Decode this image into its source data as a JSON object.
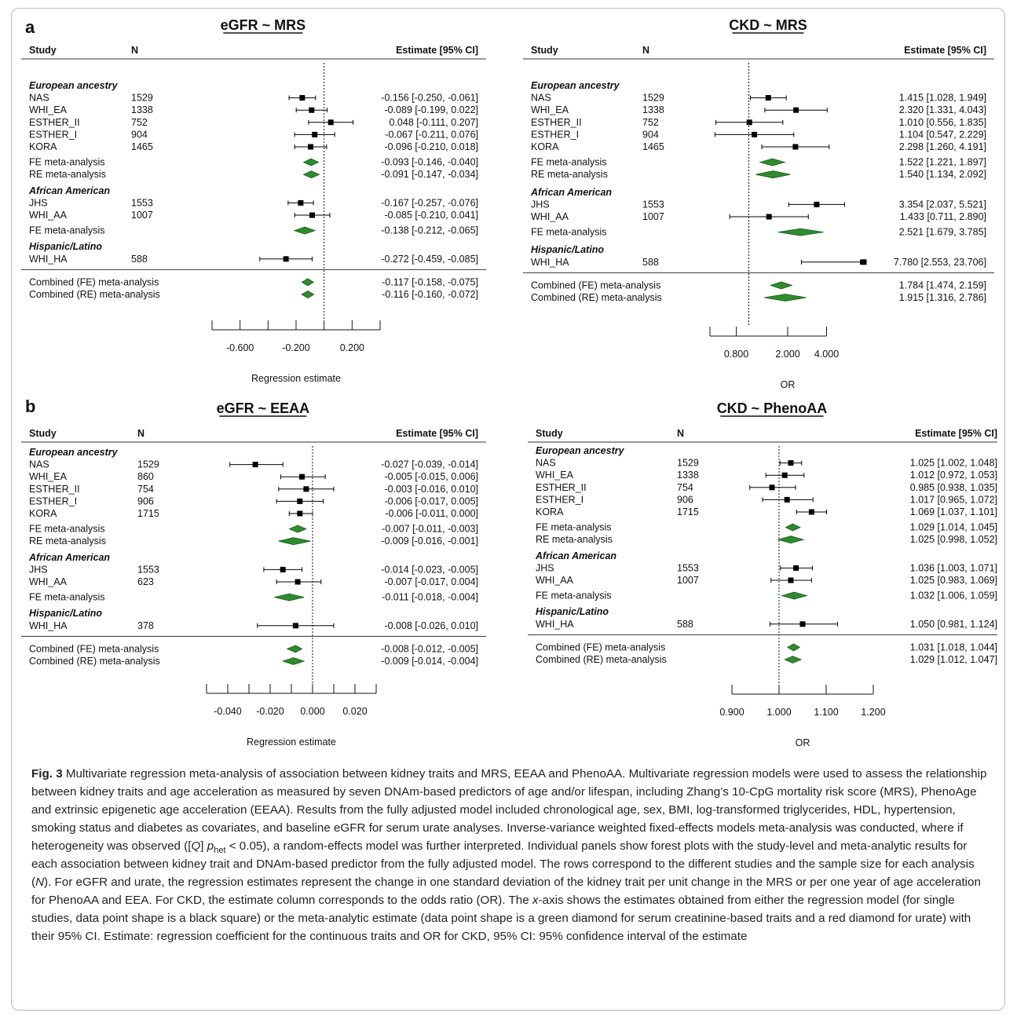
{
  "panel_letters": {
    "a": "a",
    "b": "b"
  },
  "figure_caption": {
    "label": "Fig. 3",
    "text_1": " Multivariate regression meta-analysis of association between kidney traits and MRS, EEAA and PhenoAA. Multivariate regression models were used to assess the relationship between kidney traits and age acceleration as measured by seven DNAm-based predictors of age and/or lifespan, including Zhang’s 10-CpG mortality risk score (MRS), PhenoAge and extrinsic epigenetic age acceleration (EEAA). Results from the fully adjusted model included chronological age, sex, BMI, log-transformed triglycerides, HDL, hypertension, smoking status and diabetes as covariates, and baseline eGFR for serum urate analyses. Inverse-variance weighted fixed-effects models meta-analysis was conducted, where if heterogeneity was observed ([",
    "q": "Q",
    "text_2": "] ",
    "p": "p",
    "p_sub": "het",
    "text_3": " < 0.05), a random-effects model was further interpreted. Individual panels show forest plots with the study-level and meta-analytic results for each association between kidney trait and DNAm-based predictor from the fully adjusted model. The rows correspond to the different studies and the sample size for each analysis (",
    "n": "N",
    "text_4": "). For eGFR and urate, the regression estimates represent the change in one standard deviation of the kidney trait per unit change in the MRS or per one year of age acceleration for PhenoAA and EEA. For CKD, the estimate column corresponds to the odds ratio (OR). The ",
    "x": "x",
    "text_5": "-axis shows the estimates obtained from either the regression model (for single studies, data point shape is a black square) or the meta-analytic estimate (data point shape is a green diamond for serum creatinine-based traits and a red diamond for urate) with their 95% CI. Estimate: regression coefficient for the continuous traits and OR for CKD, 95% CI: 95% confidence interval of the estimate"
  },
  "colors": {
    "diamond_fill": "#2e8b2e",
    "diamond_stroke": "#1a5c1a",
    "square": "#000000"
  },
  "chart_data": [
    {
      "type": "forest",
      "title": "eGFR ~ MRS",
      "headers": {
        "study": "Study",
        "n": "N",
        "estimate": "Estimate [95% CI]"
      },
      "xlabel": "Regression estimate",
      "xscale": "linear",
      "xlim": [
        -0.8,
        0.4
      ],
      "ticks": [
        -0.8,
        -0.6,
        -0.4,
        -0.2,
        0.0,
        0.2,
        0.4
      ],
      "tick_labels": [
        "-0.600",
        "-0.200",
        "0.200"
      ],
      "labeled_tick_values": [
        -0.6,
        -0.2,
        0.2
      ],
      "ref_line": 0,
      "rows": [
        {
          "kind": "group",
          "label": "European ancestry"
        },
        {
          "kind": "study",
          "label": "NAS",
          "n": "1529",
          "est": -0.156,
          "lo": -0.25,
          "hi": -0.061,
          "text": "-0.156 [-0.250, -0.061]"
        },
        {
          "kind": "study",
          "label": "WHI_EA",
          "n": "1338",
          "est": -0.089,
          "lo": -0.199,
          "hi": 0.022,
          "text": "-0.089 [-0.199,  0.022]"
        },
        {
          "kind": "study",
          "label": "ESTHER_II",
          "n": "752",
          "est": 0.048,
          "lo": -0.111,
          "hi": 0.207,
          "text": "0.048 [-0.111,  0.207]"
        },
        {
          "kind": "study",
          "label": "ESTHER_I",
          "n": "904",
          "est": -0.067,
          "lo": -0.211,
          "hi": 0.076,
          "text": "-0.067 [-0.211,  0.076]"
        },
        {
          "kind": "study",
          "label": "KORA",
          "n": "1465",
          "est": -0.096,
          "lo": -0.21,
          "hi": 0.018,
          "text": "-0.096 [-0.210,  0.018]"
        },
        {
          "kind": "meta",
          "label": "FE meta-analysis",
          "est": -0.093,
          "lo": -0.146,
          "hi": -0.04,
          "text": "-0.093 [-0.146, -0.040]"
        },
        {
          "kind": "meta",
          "label": "RE meta-analysis",
          "est": -0.091,
          "lo": -0.147,
          "hi": -0.034,
          "text": "-0.091 [-0.147, -0.034]"
        },
        {
          "kind": "group",
          "label": "African American"
        },
        {
          "kind": "study",
          "label": "JHS",
          "n": "1553",
          "est": -0.167,
          "lo": -0.257,
          "hi": -0.076,
          "text": "-0.167 [-0.257, -0.076]"
        },
        {
          "kind": "study",
          "label": "WHI_AA",
          "n": "1007",
          "est": -0.085,
          "lo": -0.21,
          "hi": 0.041,
          "text": "-0.085 [-0.210,  0.041]"
        },
        {
          "kind": "meta",
          "label": "FE meta-analysis",
          "est": -0.138,
          "lo": -0.212,
          "hi": -0.065,
          "text": "-0.138 [-0.212, -0.065]"
        },
        {
          "kind": "group",
          "label": "Hispanic/Latino"
        },
        {
          "kind": "study",
          "label": "WHI_HA",
          "n": "588",
          "est": -0.272,
          "lo": -0.459,
          "hi": -0.085,
          "text": "-0.272 [-0.459, -0.085]"
        },
        {
          "kind": "divider"
        },
        {
          "kind": "meta",
          "label": "Combined (FE) meta-analysis",
          "est": -0.117,
          "lo": -0.158,
          "hi": -0.075,
          "text": "-0.117 [-0.158, -0.075]"
        },
        {
          "kind": "meta",
          "label": "Combined (RE) meta-analysis",
          "est": -0.116,
          "lo": -0.16,
          "hi": -0.072,
          "text": "-0.116 [-0.160, -0.072]"
        }
      ]
    },
    {
      "type": "forest",
      "title": "CKD ~ MRS",
      "headers": {
        "study": "Study",
        "n": "N",
        "estimate": "Estimate [95% CI]"
      },
      "xlabel": "OR",
      "xscale": "log",
      "xlim": [
        0.5,
        8
      ],
      "ticks": [
        0.5,
        0.8,
        2.0,
        4.0
      ],
      "tick_labels": [
        "0.800",
        "2.000",
        "4.000"
      ],
      "labeled_tick_values": [
        0.8,
        2.0,
        4.0
      ],
      "ref_line": 1,
      "rows": [
        {
          "kind": "group",
          "label": "European ancestry"
        },
        {
          "kind": "study",
          "label": "NAS",
          "n": "1529",
          "est": 1.415,
          "lo": 1.028,
          "hi": 1.949,
          "text": "1.415 [1.028,  1.949]"
        },
        {
          "kind": "study",
          "label": "WHI_EA",
          "n": "1338",
          "est": 2.32,
          "lo": 1.331,
          "hi": 4.043,
          "text": "2.320 [1.331,  4.043]"
        },
        {
          "kind": "study",
          "label": "ESTHER_II",
          "n": "752",
          "est": 1.01,
          "lo": 0.556,
          "hi": 1.835,
          "text": "1.010 [0.556,  1.835]"
        },
        {
          "kind": "study",
          "label": "ESTHER_I",
          "n": "904",
          "est": 1.104,
          "lo": 0.547,
          "hi": 2.229,
          "text": "1.104 [0.547,  2.229]"
        },
        {
          "kind": "study",
          "label": "KORA",
          "n": "1465",
          "est": 2.298,
          "lo": 1.26,
          "hi": 4.191,
          "text": "2.298 [1.260,  4.191]"
        },
        {
          "kind": "meta",
          "label": "FE meta-analysis",
          "est": 1.522,
          "lo": 1.221,
          "hi": 1.897,
          "text": "1.522 [1.221,  1.897]"
        },
        {
          "kind": "meta",
          "label": "RE meta-analysis",
          "est": 1.54,
          "lo": 1.134,
          "hi": 2.092,
          "text": "1.540 [1.134,  2.092]"
        },
        {
          "kind": "group",
          "label": "African American"
        },
        {
          "kind": "study",
          "label": "JHS",
          "n": "1553",
          "est": 3.354,
          "lo": 2.037,
          "hi": 5.521,
          "text": "3.354 [2.037,  5.521]"
        },
        {
          "kind": "study",
          "label": "WHI_AA",
          "n": "1007",
          "est": 1.433,
          "lo": 0.711,
          "hi": 2.89,
          "text": "1.433 [0.711,  2.890]"
        },
        {
          "kind": "meta",
          "label": "FE meta-analysis",
          "est": 2.521,
          "lo": 1.679,
          "hi": 3.785,
          "text": "2.521 [1.679,  3.785]"
        },
        {
          "kind": "group",
          "label": "Hispanic/Latino"
        },
        {
          "kind": "study",
          "label": "WHI_HA",
          "n": "588",
          "est": 7.78,
          "lo": 2.553,
          "hi": 23.706,
          "text": "7.780 [2.553, 23.706]"
        },
        {
          "kind": "divider"
        },
        {
          "kind": "meta",
          "label": "Combined (FE) meta-analysis",
          "est": 1.784,
          "lo": 1.474,
          "hi": 2.159,
          "text": "1.784 [1.474,  2.159]"
        },
        {
          "kind": "meta",
          "label": "Combined (RE) meta-analysis",
          "est": 1.915,
          "lo": 1.316,
          "hi": 2.786,
          "text": "1.915 [1.316,  2.786]"
        }
      ]
    },
    {
      "type": "forest",
      "title": "eGFR ~ EEAA",
      "headers": {
        "study": "Study",
        "n": "N",
        "estimate": "Estimate [95% CI]"
      },
      "xlabel": "Regression estimate",
      "xscale": "linear",
      "xlim": [
        -0.05,
        0.03
      ],
      "ticks": [
        -0.05,
        -0.04,
        -0.03,
        -0.02,
        -0.01,
        0.0,
        0.01,
        0.02,
        0.03
      ],
      "tick_labels": [
        "-0.040",
        "-0.020",
        "0.000",
        "0.020"
      ],
      "labeled_tick_values": [
        -0.04,
        -0.02,
        0.0,
        0.02
      ],
      "ref_line": 0,
      "rows": [
        {
          "kind": "group",
          "label": "European ancestry"
        },
        {
          "kind": "study",
          "label": "NAS",
          "n": "1529",
          "est": -0.027,
          "lo": -0.039,
          "hi": -0.014,
          "text": "-0.027 [-0.039, -0.014]"
        },
        {
          "kind": "study",
          "label": "WHI_EA",
          "n": "860",
          "est": -0.005,
          "lo": -0.015,
          "hi": 0.006,
          "text": "-0.005 [-0.015,  0.006]"
        },
        {
          "kind": "study",
          "label": "ESTHER_II",
          "n": "754",
          "est": -0.003,
          "lo": -0.016,
          "hi": 0.01,
          "text": "-0.003 [-0.016,  0.010]"
        },
        {
          "kind": "study",
          "label": "ESTHER_I",
          "n": "906",
          "est": -0.006,
          "lo": -0.017,
          "hi": 0.005,
          "text": "-0.006 [-0.017,  0.005]"
        },
        {
          "kind": "study",
          "label": "KORA",
          "n": "1715",
          "est": -0.006,
          "lo": -0.011,
          "hi": 0.0,
          "text": "-0.006 [-0.011,  0.000]"
        },
        {
          "kind": "meta",
          "label": "FE meta-analysis",
          "est": -0.007,
          "lo": -0.011,
          "hi": -0.003,
          "text": "-0.007 [-0.011, -0.003]"
        },
        {
          "kind": "meta",
          "label": "RE meta-analysis",
          "est": -0.009,
          "lo": -0.016,
          "hi": -0.001,
          "text": "-0.009 [-0.016, -0.001]"
        },
        {
          "kind": "group",
          "label": "African American"
        },
        {
          "kind": "study",
          "label": "JHS",
          "n": "1553",
          "est": -0.014,
          "lo": -0.023,
          "hi": -0.005,
          "text": "-0.014 [-0.023, -0.005]"
        },
        {
          "kind": "study",
          "label": "WHI_AA",
          "n": "623",
          "est": -0.007,
          "lo": -0.017,
          "hi": 0.004,
          "text": "-0.007 [-0.017,  0.004]"
        },
        {
          "kind": "meta",
          "label": "FE meta-analysis",
          "est": -0.011,
          "lo": -0.018,
          "hi": -0.004,
          "text": "-0.011 [-0.018, -0.004]"
        },
        {
          "kind": "group",
          "label": "Hispanic/Latino"
        },
        {
          "kind": "study",
          "label": "WHI_HA",
          "n": "378",
          "est": -0.008,
          "lo": -0.026,
          "hi": 0.01,
          "text": "-0.008 [-0.026,  0.010]"
        },
        {
          "kind": "divider"
        },
        {
          "kind": "meta",
          "label": "Combined (FE) meta-analysis",
          "est": -0.008,
          "lo": -0.012,
          "hi": -0.005,
          "text": "-0.008 [-0.012, -0.005]"
        },
        {
          "kind": "meta",
          "label": "Combined (RE) meta-analysis",
          "est": -0.009,
          "lo": -0.014,
          "hi": -0.004,
          "text": "-0.009 [-0.014, -0.004]"
        }
      ]
    },
    {
      "type": "forest",
      "title": "CKD ~ PhenoAA",
      "headers": {
        "study": "Study",
        "n": "N",
        "estimate": "Estimate [95% CI]"
      },
      "xlabel": "OR",
      "xscale": "linear",
      "xlim": [
        0.9,
        1.2
      ],
      "ticks": [
        0.9,
        1.0,
        1.1,
        1.2
      ],
      "tick_labels": [
        "0.900",
        "1.000",
        "1.100",
        "1.200"
      ],
      "labeled_tick_values": [
        0.9,
        1.0,
        1.1,
        1.2
      ],
      "ref_line": 1,
      "rows": [
        {
          "kind": "group",
          "label": "European ancestry"
        },
        {
          "kind": "study",
          "label": "NAS",
          "n": "1529",
          "est": 1.025,
          "lo": 1.002,
          "hi": 1.048,
          "text": "1.025 [1.002, 1.048]"
        },
        {
          "kind": "study",
          "label": "WHI_EA",
          "n": "1338",
          "est": 1.012,
          "lo": 0.972,
          "hi": 1.053,
          "text": "1.012 [0.972, 1.053]"
        },
        {
          "kind": "study",
          "label": "ESTHER_II",
          "n": "754",
          "est": 0.985,
          "lo": 0.938,
          "hi": 1.035,
          "text": "0.985 [0.938, 1.035]"
        },
        {
          "kind": "study",
          "label": "ESTHER_I",
          "n": "906",
          "est": 1.017,
          "lo": 0.965,
          "hi": 1.072,
          "text": "1.017 [0.965, 1.072]"
        },
        {
          "kind": "study",
          "label": "KORA",
          "n": "1715",
          "est": 1.069,
          "lo": 1.037,
          "hi": 1.101,
          "text": "1.069 [1.037, 1.101]"
        },
        {
          "kind": "meta",
          "label": "FE meta-analysis",
          "est": 1.029,
          "lo": 1.014,
          "hi": 1.045,
          "text": "1.029 [1.014, 1.045]"
        },
        {
          "kind": "meta",
          "label": "RE meta-analysis",
          "est": 1.025,
          "lo": 0.998,
          "hi": 1.052,
          "text": "1.025 [0.998, 1.052]"
        },
        {
          "kind": "group",
          "label": "African American"
        },
        {
          "kind": "study",
          "label": "JHS",
          "n": "1553",
          "est": 1.036,
          "lo": 1.003,
          "hi": 1.071,
          "text": "1.036 [1.003, 1.071]"
        },
        {
          "kind": "study",
          "label": "WHI_AA",
          "n": "1007",
          "est": 1.025,
          "lo": 0.983,
          "hi": 1.069,
          "text": "1.025 [0.983, 1.069]"
        },
        {
          "kind": "meta",
          "label": "FE meta-analysis",
          "est": 1.032,
          "lo": 1.006,
          "hi": 1.059,
          "text": "1.032 [1.006, 1.059]"
        },
        {
          "kind": "group",
          "label": "Hispanic/Latino"
        },
        {
          "kind": "study",
          "label": "WHI_HA",
          "n": "588",
          "est": 1.05,
          "lo": 0.981,
          "hi": 1.124,
          "text": "1.050 [0.981, 1.124]"
        },
        {
          "kind": "divider"
        },
        {
          "kind": "meta",
          "label": "Combined (FE) meta-analysis",
          "est": 1.031,
          "lo": 1.018,
          "hi": 1.044,
          "text": "1.031 [1.018, 1.044]"
        },
        {
          "kind": "meta",
          "label": "Combined (RE) meta-analysis",
          "est": 1.029,
          "lo": 1.012,
          "hi": 1.047,
          "text": "1.029 [1.012, 1.047]"
        }
      ]
    }
  ]
}
